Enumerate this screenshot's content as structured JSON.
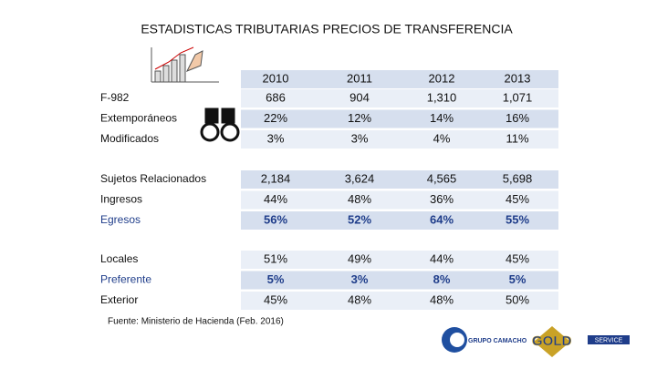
{
  "title": "ESTADISTICAS TRIBUTARIAS PRECIOS DE TRANSFERENCIA",
  "header": [
    "2010",
    "2011",
    "2012",
    "2013"
  ],
  "groups": [
    {
      "rows": [
        {
          "label": "F-982",
          "values": [
            "686",
            "904",
            "1,310",
            "1,071"
          ]
        },
        {
          "label": "Extemporáneos",
          "values": [
            "22%",
            "12%",
            "14%",
            "16%"
          ]
        },
        {
          "label": "Modificados",
          "values": [
            "3%",
            "3%",
            "4%",
            "11%"
          ]
        }
      ]
    },
    {
      "rows": [
        {
          "label": "Sujetos Relacionados",
          "values": [
            "2,184",
            "3,624",
            "4,565",
            "5,698"
          ]
        },
        {
          "label": "Ingresos",
          "values": [
            "44%",
            "48%",
            "36%",
            "45%"
          ]
        },
        {
          "label": "Egresos",
          "values": [
            "56%",
            "52%",
            "64%",
            "55%"
          ],
          "color": "#1f3d8a"
        }
      ]
    },
    {
      "rows": [
        {
          "label": "Locales",
          "values": [
            "51%",
            "49%",
            "44%",
            "45%"
          ]
        },
        {
          "label": "Preferente",
          "values": [
            "5%",
            "3%",
            "8%",
            "5%"
          ],
          "color": "#1f3d8a"
        },
        {
          "label": "Exterior",
          "values": [
            "45%",
            "48%",
            "48%",
            "50%"
          ]
        }
      ]
    }
  ],
  "source": "Fuente: Ministerio de Hacienda (Feb. 2016)",
  "logos": [
    "GRUPO CAMACHO",
    "GOLD",
    "SERVICE"
  ]
}
